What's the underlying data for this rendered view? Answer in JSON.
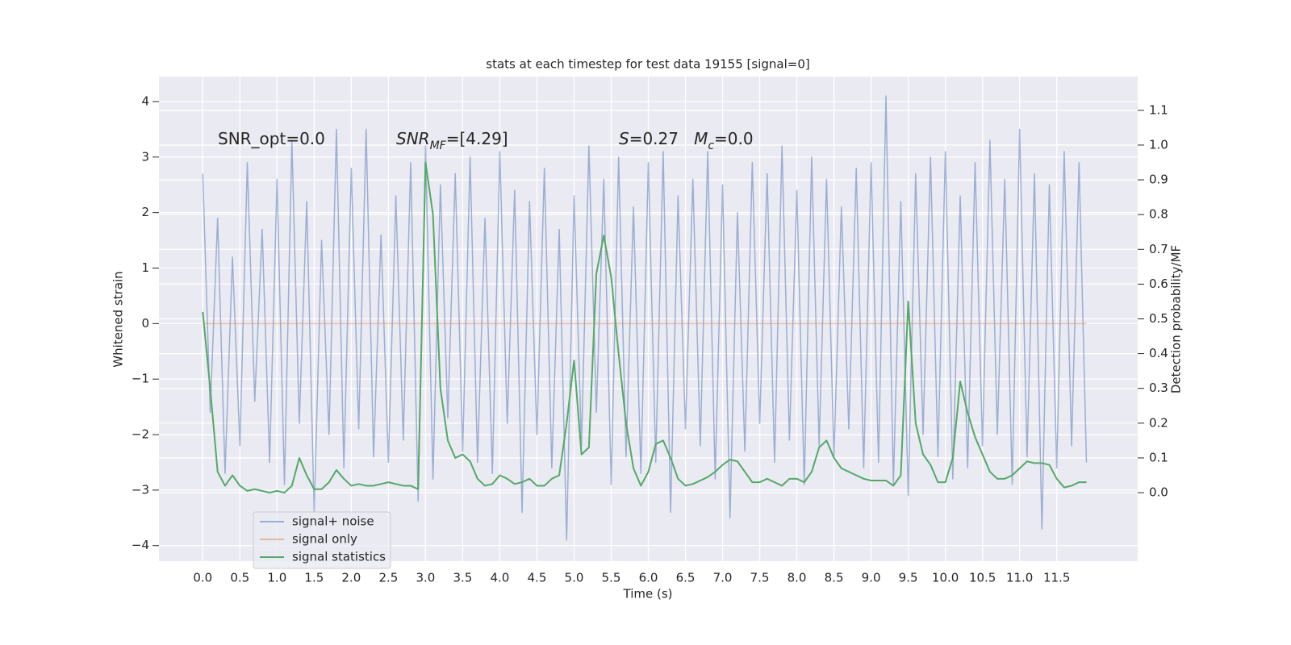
{
  "chart_data": {
    "type": "line",
    "title": "stats at each timestep for test data 19155 [signal=0]",
    "x_label": "Time (s)",
    "y_label": "Whitened strain",
    "y2_label": "Detection probability/MF",
    "annotations": [
      {
        "runs": [
          {
            "text": "SNR_opt=0.0",
            "italic": false,
            "sub": false
          }
        ]
      },
      {
        "runs": [
          {
            "text": "SNR",
            "italic": true,
            "sub": false
          },
          {
            "text": "MF",
            "italic": true,
            "sub": true
          },
          {
            "text": "=[4.29]",
            "italic": false,
            "sub": false
          }
        ]
      },
      {
        "runs": [
          {
            "text": "S",
            "italic": true,
            "sub": false
          },
          {
            "text": "=0.27   ",
            "italic": false,
            "sub": false
          },
          {
            "text": "M",
            "italic": true,
            "sub": false
          },
          {
            "text": "c",
            "italic": true,
            "sub": true
          },
          {
            "text": "=0.0",
            "italic": false,
            "sub": false
          }
        ]
      }
    ],
    "x": [
      0.0,
      0.1,
      0.2,
      0.3,
      0.4,
      0.5,
      0.6,
      0.7,
      0.8,
      0.9,
      1.0,
      1.1,
      1.2,
      1.3,
      1.4,
      1.5,
      1.6,
      1.7,
      1.8,
      1.9,
      2.0,
      2.1,
      2.2,
      2.3,
      2.4,
      2.5,
      2.6,
      2.7,
      2.8,
      2.9,
      3.0,
      3.1,
      3.2,
      3.3,
      3.4,
      3.5,
      3.6,
      3.7,
      3.8,
      3.9,
      4.0,
      4.1,
      4.2,
      4.3,
      4.4,
      4.5,
      4.6,
      4.7,
      4.8,
      4.9,
      5.0,
      5.1,
      5.2,
      5.3,
      5.4,
      5.5,
      5.6,
      5.7,
      5.8,
      5.9,
      6.0,
      6.1,
      6.2,
      6.3,
      6.4,
      6.5,
      6.6,
      6.7,
      6.8,
      6.9,
      7.0,
      7.1,
      7.2,
      7.3,
      7.4,
      7.5,
      7.6,
      7.7,
      7.8,
      7.9,
      8.0,
      8.1,
      8.2,
      8.3,
      8.4,
      8.5,
      8.6,
      8.7,
      8.8,
      8.9,
      9.0,
      9.1,
      9.2,
      9.3,
      9.4,
      9.5,
      9.6,
      9.7,
      9.8,
      9.9,
      10.0,
      10.1,
      10.2,
      10.3,
      10.4,
      10.5,
      10.6,
      10.7,
      10.8,
      10.9,
      11.0,
      11.1,
      11.2,
      11.3,
      11.4,
      11.5,
      11.6,
      11.7,
      11.8,
      11.9
    ],
    "series": [
      {
        "name": "signal+ noise",
        "color": "#4c72b0",
        "opacity": 0.5,
        "axis": "y",
        "values": [
          2.7,
          -1.6,
          1.9,
          -2.7,
          1.2,
          -2.2,
          2.9,
          -1.4,
          1.7,
          -2.5,
          2.6,
          -2.9,
          3.3,
          -1.8,
          2.2,
          -3.4,
          1.5,
          -2.0,
          3.5,
          -2.6,
          2.8,
          -1.9,
          3.5,
          -2.4,
          1.6,
          -2.5,
          2.3,
          -2.1,
          2.9,
          -3.2,
          3.2,
          -2.8,
          2.5,
          -1.7,
          2.7,
          -2.3,
          3.0,
          -2.5,
          1.9,
          -2.7,
          3.1,
          -1.8,
          2.4,
          -3.4,
          2.2,
          -2.0,
          2.8,
          -2.6,
          1.7,
          -3.9,
          2.3,
          -2.2,
          3.2,
          -1.6,
          2.6,
          -2.9,
          3.0,
          -2.4,
          2.1,
          -2.7,
          2.9,
          -2.5,
          3.1,
          -3.4,
          2.3,
          -1.9,
          2.6,
          -2.2,
          3.1,
          -2.8,
          2.5,
          -3.5,
          2.0,
          -2.3,
          2.9,
          -1.8,
          2.7,
          -2.5,
          3.2,
          -2.1,
          2.4,
          -2.9,
          3.0,
          -2.2,
          2.6,
          -2.4,
          2.1,
          -1.9,
          2.8,
          -2.6,
          2.9,
          -2.5,
          4.1,
          -2.9,
          2.2,
          -3.1,
          2.7,
          -2.0,
          3.0,
          -2.4,
          3.1,
          -2.8,
          2.3,
          -2.6,
          2.9,
          -2.2,
          3.3,
          -2.0,
          2.6,
          -2.9,
          3.5,
          -2.4,
          2.7,
          -3.7,
          2.5,
          -2.6,
          3.1,
          -2.2,
          2.9,
          -2.5
        ]
      },
      {
        "name": "signal only",
        "color": "#dd8452",
        "opacity": 0.5,
        "axis": "y",
        "values": [
          0,
          0,
          0,
          0,
          0,
          0,
          0,
          0,
          0,
          0,
          0,
          0,
          0,
          0,
          0,
          0,
          0,
          0,
          0,
          0,
          0,
          0,
          0,
          0,
          0,
          0,
          0,
          0,
          0,
          0,
          0,
          0,
          0,
          0,
          0,
          0,
          0,
          0,
          0,
          0,
          0,
          0,
          0,
          0,
          0,
          0,
          0,
          0,
          0,
          0,
          0,
          0,
          0,
          0,
          0,
          0,
          0,
          0,
          0,
          0,
          0,
          0,
          0,
          0,
          0,
          0,
          0,
          0,
          0,
          0,
          0,
          0,
          0,
          0,
          0,
          0,
          0,
          0,
          0,
          0,
          0,
          0,
          0,
          0,
          0,
          0,
          0,
          0,
          0,
          0,
          0,
          0,
          0,
          0,
          0,
          0,
          0,
          0,
          0,
          0,
          0,
          0,
          0,
          0,
          0,
          0,
          0,
          0,
          0,
          0,
          0,
          0,
          0,
          0,
          0,
          0,
          0,
          0,
          0,
          0
        ]
      },
      {
        "name": "signal statistics",
        "color": "#55a868",
        "opacity": 1,
        "axis": "y2",
        "values": [
          0.52,
          0.3,
          0.06,
          0.02,
          0.05,
          0.02,
          0.005,
          0.01,
          0.005,
          0.0,
          0.005,
          0.0,
          0.02,
          0.1,
          0.05,
          0.01,
          0.01,
          0.03,
          0.065,
          0.04,
          0.02,
          0.025,
          0.02,
          0.02,
          0.025,
          0.03,
          0.025,
          0.02,
          0.02,
          0.01,
          0.95,
          0.8,
          0.3,
          0.15,
          0.1,
          0.11,
          0.09,
          0.04,
          0.02,
          0.025,
          0.05,
          0.04,
          0.025,
          0.03,
          0.04,
          0.02,
          0.02,
          0.04,
          0.05,
          0.2,
          0.38,
          0.11,
          0.13,
          0.63,
          0.74,
          0.62,
          0.4,
          0.2,
          0.07,
          0.02,
          0.06,
          0.14,
          0.15,
          0.1,
          0.04,
          0.02,
          0.025,
          0.035,
          0.045,
          0.06,
          0.08,
          0.095,
          0.09,
          0.06,
          0.03,
          0.03,
          0.04,
          0.03,
          0.02,
          0.04,
          0.04,
          0.03,
          0.06,
          0.13,
          0.15,
          0.1,
          0.07,
          0.06,
          0.05,
          0.04,
          0.035,
          0.035,
          0.035,
          0.02,
          0.05,
          0.55,
          0.2,
          0.11,
          0.08,
          0.03,
          0.03,
          0.1,
          0.32,
          0.23,
          0.16,
          0.11,
          0.06,
          0.04,
          0.04,
          0.05,
          0.07,
          0.09,
          0.085,
          0.085,
          0.08,
          0.04,
          0.015,
          0.02,
          0.03,
          0.03
        ]
      }
    ],
    "xlim": [
      -0.59,
      12.59
    ],
    "ylim": [
      -4.28,
      4.45
    ],
    "y2lim": [
      -0.197,
      1.197
    ],
    "xticks": [
      {
        "value": 0,
        "label": "0.0"
      },
      0.5,
      {
        "value": 1,
        "label": "1.0"
      },
      1.5,
      {
        "value": 2,
        "label": "2.0"
      },
      2.5,
      {
        "value": 3,
        "label": "3.0"
      },
      3.5,
      {
        "value": 4,
        "label": "4.0"
      },
      4.5,
      {
        "value": 5,
        "label": "5.0"
      },
      5.5,
      {
        "value": 6,
        "label": "6.0"
      },
      6.5,
      {
        "value": 7,
        "label": "7.0"
      },
      7.5,
      {
        "value": 8,
        "label": "8.0"
      },
      8.5,
      {
        "value": 9,
        "label": "9.0"
      },
      9.5,
      {
        "value": 10,
        "label": "10.0"
      },
      10.5,
      {
        "value": 11,
        "label": "11.0"
      },
      11.5
    ],
    "yticks": [
      {
        "value": -4,
        "label": "−4"
      },
      {
        "value": -3,
        "label": "−3"
      },
      {
        "value": -2,
        "label": "−2"
      },
      {
        "value": -1,
        "label": "−1"
      },
      0,
      1,
      2,
      3,
      4
    ],
    "y2ticks": [
      {
        "value": 0,
        "label": "0.0"
      },
      0.1,
      0.2,
      0.3,
      0.4,
      0.5,
      0.6,
      0.7,
      0.8,
      0.9,
      {
        "value": 1,
        "label": "1.0"
      },
      1.1
    ],
    "grid": true,
    "legend": "lower left"
  }
}
